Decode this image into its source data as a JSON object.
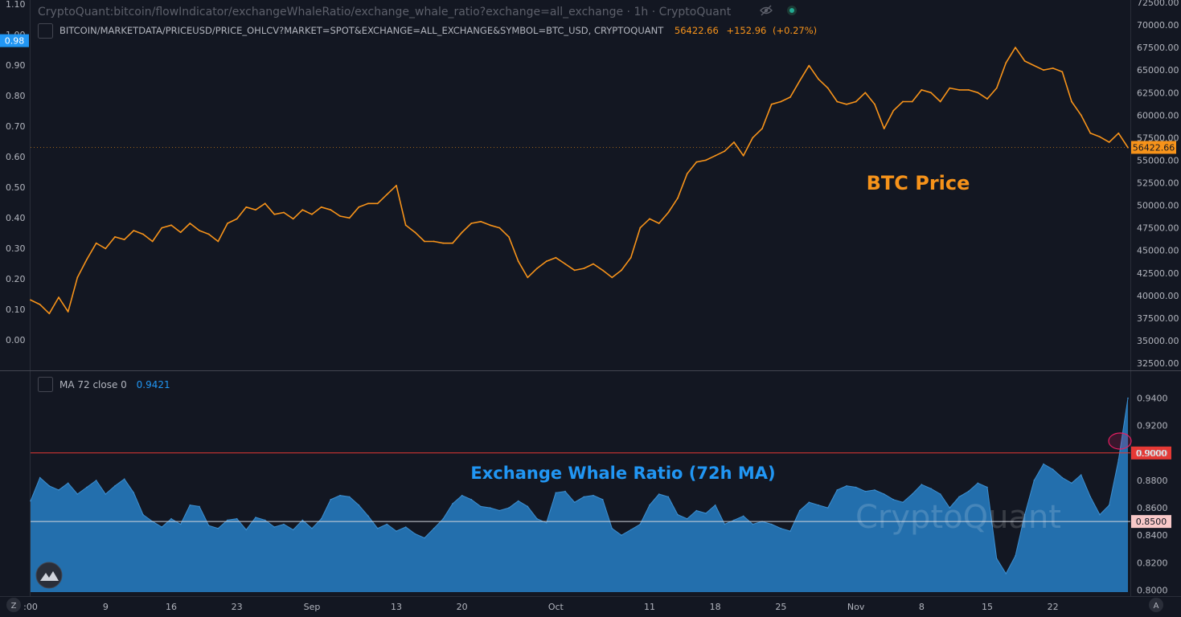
{
  "window": {
    "title": "CryptoQuant:bitcoin/flowIndicator/exchangeWhaleRatio/exchange_whale_ratio?exchange=all_exchange · 1h · CryptoQuant"
  },
  "colors": {
    "background": "#131722",
    "btc_line": "#f7931a",
    "whale_fill": "#2474b5",
    "whale_line": "#3d8fd1",
    "threshold_high": "#e53935",
    "threshold_low": "#d1d4dc",
    "axis_text": "#b2b5be",
    "accent_blue": "#2196f3"
  },
  "icons": {
    "visibility": "eye-slash-icon",
    "status": "green-dot-icon",
    "logo": "cryptoquant-logo-icon",
    "left_corner": "z-icon",
    "right_corner": "auto-scale-a-icon"
  },
  "legend_main": {
    "series_name": "BITCOIN/MARKETDATA/PRICEUSD/PRICE_OHLCV?MARKET=SPOT&EXCHANGE=ALL_EXCHANGE&SYMBOL=BTC_USD, CRYPTOQUANT",
    "value": "56422.66",
    "change": "+152.96",
    "change_pct": "(+0.27%)"
  },
  "legend_sub": {
    "name": "MA 72 close 0",
    "value": "0.9421"
  },
  "annotations": {
    "btc_label": "BTC Price",
    "whale_label": "Exchange Whale Ratio (72h MA)",
    "watermark": "CryptoQuant"
  },
  "corner_labels": {
    "left": "Z",
    "right": "A"
  },
  "chart_data": [
    {
      "type": "line",
      "name": "BTC Price",
      "x_ticks": [
        ":00",
        "9",
        "16",
        "23",
        "Sep",
        "13",
        "20",
        "Oct",
        "11",
        "18",
        "25",
        "Nov",
        "8",
        "15",
        "22"
      ],
      "y_right_ticks": [
        "72500.00",
        "70000.00",
        "67500.00",
        "65000.00",
        "62500.00",
        "60000.00",
        "57500.00",
        "55000.00",
        "52500.00",
        "50000.00",
        "47500.00",
        "45000.00",
        "42500.00",
        "40000.00",
        "37500.00",
        "35000.00",
        "32500.00"
      ],
      "y_left_ticks": [
        "1.10",
        "1.00",
        "0.90",
        "0.80",
        "0.70",
        "0.60",
        "0.50",
        "0.40",
        "0.30",
        "0.20",
        "0.10",
        "0.00"
      ],
      "ylim_right": [
        32500,
        72500
      ],
      "ylim_left": [
        0.0,
        1.1
      ],
      "left_axis_badge": "0.98",
      "last_value_badge": "56422.66",
      "x_days": [
        0,
        1,
        2,
        3,
        4,
        5,
        6,
        7,
        8,
        9,
        10,
        11,
        12,
        13,
        14,
        15,
        16,
        17,
        18,
        19,
        20,
        21,
        22,
        23,
        24,
        25,
        26,
        27,
        28,
        29,
        30,
        31,
        32,
        33,
        34,
        35,
        36,
        37,
        38,
        39,
        40,
        41,
        42,
        43,
        44,
        45,
        46,
        47,
        48,
        49,
        50,
        51,
        52,
        53,
        54,
        55,
        56,
        57,
        58,
        59,
        60,
        61,
        62,
        63,
        64,
        65,
        66,
        67,
        68,
        69,
        70,
        71,
        72,
        73,
        74,
        75,
        76,
        77,
        78,
        79,
        80,
        81,
        82,
        83,
        84,
        85,
        86,
        87,
        88,
        89,
        90,
        91,
        92,
        93,
        94,
        95,
        96,
        97,
        98,
        99,
        100,
        101,
        102,
        103,
        104,
        105,
        106,
        107,
        108,
        109,
        110,
        111,
        112,
        113,
        114,
        115,
        116,
        117
      ],
      "values": [
        39500,
        39000,
        38000,
        39800,
        38200,
        42000,
        44000,
        45800,
        45200,
        46500,
        46200,
        47200,
        46800,
        46000,
        47500,
        47800,
        47000,
        48000,
        47200,
        46800,
        46000,
        48000,
        48500,
        49800,
        49500,
        50200,
        49000,
        49200,
        48500,
        49500,
        49000,
        49800,
        49500,
        48800,
        48600,
        49800,
        50200,
        50200,
        51200,
        52200,
        47800,
        47000,
        46000,
        46000,
        45800,
        45800,
        47000,
        48000,
        48200,
        47800,
        47500,
        46500,
        43800,
        42000,
        43000,
        43800,
        44200,
        43500,
        42800,
        43000,
        43500,
        42800,
        42000,
        42800,
        44200,
        47500,
        48500,
        48000,
        49200,
        50800,
        53500,
        54800,
        55000,
        55500,
        56000,
        57000,
        55500,
        57500,
        58500,
        61200,
        61500,
        62000,
        63800,
        65500,
        64000,
        63000,
        61500,
        61200,
        61500,
        62500,
        61200,
        58500,
        60500,
        61500,
        61500,
        62800,
        62500,
        61500,
        63000,
        62800,
        62800,
        62500,
        61800,
        63000,
        65800,
        67500,
        66000,
        65500,
        65000,
        65200,
        64800,
        61500,
        60000,
        58000,
        57600,
        57000,
        58000,
        56400
      ],
      "ylabel": ""
    },
    {
      "type": "area",
      "name": "MA 72 close 0",
      "y_ticks": [
        "0.9400",
        "0.9200",
        "0.9000",
        "0.8800",
        "0.8600",
        "0.8400",
        "0.8200",
        "0.8000"
      ],
      "ylim": [
        0.7985,
        0.9415
      ],
      "hlines": [
        {
          "value": 0.9,
          "label": "0.9000",
          "color": "#e53935"
        },
        {
          "value": 0.85,
          "label": "0.8500",
          "color": "#d1d4dc"
        }
      ],
      "x_days": [
        0,
        1,
        2,
        3,
        4,
        5,
        6,
        7,
        8,
        9,
        10,
        11,
        12,
        13,
        14,
        15,
        16,
        17,
        18,
        19,
        20,
        21,
        22,
        23,
        24,
        25,
        26,
        27,
        28,
        29,
        30,
        31,
        32,
        33,
        34,
        35,
        36,
        37,
        38,
        39,
        40,
        41,
        42,
        43,
        44,
        45,
        46,
        47,
        48,
        49,
        50,
        51,
        52,
        53,
        54,
        55,
        56,
        57,
        58,
        59,
        60,
        61,
        62,
        63,
        64,
        65,
        66,
        67,
        68,
        69,
        70,
        71,
        72,
        73,
        74,
        75,
        76,
        77,
        78,
        79,
        80,
        81,
        82,
        83,
        84,
        85,
        86,
        87,
        88,
        89,
        90,
        91,
        92,
        93,
        94,
        95,
        96,
        97,
        98,
        99,
        100,
        101,
        102,
        103,
        104,
        105,
        106,
        107,
        108,
        109,
        110,
        111,
        112,
        113,
        114,
        115,
        116,
        117
      ],
      "values": [
        0.865,
        0.882,
        0.876,
        0.873,
        0.878,
        0.87,
        0.875,
        0.88,
        0.87,
        0.876,
        0.881,
        0.871,
        0.855,
        0.85,
        0.846,
        0.852,
        0.848,
        0.862,
        0.861,
        0.847,
        0.845,
        0.851,
        0.852,
        0.844,
        0.853,
        0.851,
        0.846,
        0.848,
        0.844,
        0.851,
        0.845,
        0.852,
        0.866,
        0.869,
        0.868,
        0.862,
        0.854,
        0.845,
        0.848,
        0.843,
        0.846,
        0.841,
        0.838,
        0.845,
        0.852,
        0.863,
        0.869,
        0.866,
        0.861,
        0.86,
        0.858,
        0.86,
        0.865,
        0.861,
        0.852,
        0.849,
        0.871,
        0.872,
        0.864,
        0.868,
        0.869,
        0.866,
        0.845,
        0.84,
        0.844,
        0.848,
        0.862,
        0.87,
        0.868,
        0.855,
        0.852,
        0.858,
        0.856,
        0.862,
        0.848,
        0.851,
        0.854,
        0.848,
        0.85,
        0.848,
        0.845,
        0.843,
        0.858,
        0.864,
        0.862,
        0.86,
        0.873,
        0.876,
        0.875,
        0.872,
        0.873,
        0.87,
        0.866,
        0.864,
        0.87,
        0.877,
        0.874,
        0.87,
        0.86,
        0.868,
        0.872,
        0.878,
        0.875,
        0.823,
        0.812,
        0.825,
        0.855,
        0.88,
        0.892,
        0.888,
        0.882,
        0.878,
        0.884,
        0.868,
        0.855,
        0.862,
        0.895,
        0.94
      ],
      "ylabel": ""
    }
  ]
}
